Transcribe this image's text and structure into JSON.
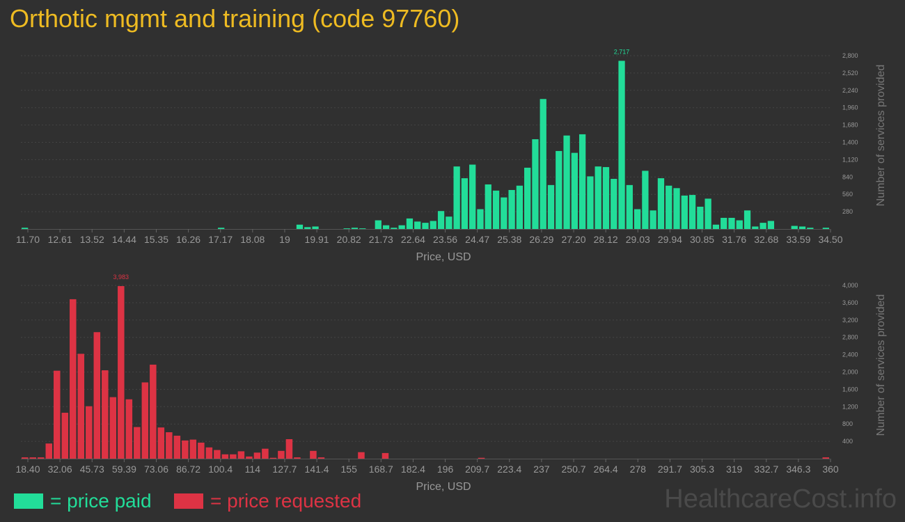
{
  "title": "Orthotic mgmt and training (code 97760)",
  "colors": {
    "background": "#303030",
    "title": "#eebb22",
    "paid": "#22dd99",
    "requested": "#dd3344",
    "axis_text": "#999999",
    "grid": "#444444"
  },
  "legend": {
    "paid_label": "= price paid",
    "requested_label": "= price requested"
  },
  "watermark": "HealthcareCost.info",
  "chart_data": [
    {
      "type": "bar",
      "series": [
        {
          "name": "price paid",
          "color": "#22dd99"
        }
      ],
      "xlabel": "Price, USD",
      "ylabel": "Number of services provided",
      "xticks": [
        "11.70",
        "12.61",
        "13.52",
        "14.44",
        "15.35",
        "16.26",
        "17.17",
        "18.08",
        "19",
        "19.91",
        "20.82",
        "21.73",
        "22.64",
        "23.56",
        "24.47",
        "25.38",
        "26.29",
        "27.20",
        "28.12",
        "29.03",
        "29.94",
        "30.85",
        "31.76",
        "32.68",
        "33.59",
        "34.50"
      ],
      "yticks": [
        "280",
        "560",
        "840",
        "1,120",
        "1,400",
        "1,680",
        "1,960",
        "2,240",
        "2,520",
        "2,800"
      ],
      "ylim": [
        0,
        2800
      ],
      "max_label": "2,717",
      "values": [
        20,
        0,
        0,
        0,
        0,
        0,
        0,
        0,
        0,
        0,
        0,
        0,
        0,
        0,
        0,
        0,
        0,
        0,
        0,
        0,
        0,
        0,
        0,
        0,
        0,
        20,
        0,
        0,
        0,
        0,
        0,
        0,
        0,
        0,
        0,
        70,
        30,
        40,
        0,
        0,
        0,
        10,
        20,
        10,
        0,
        140,
        60,
        20,
        60,
        170,
        120,
        100,
        130,
        290,
        200,
        1010,
        820,
        1040,
        320,
        720,
        620,
        510,
        630,
        700,
        990,
        1450,
        2100,
        710,
        1260,
        1510,
        1230,
        1530,
        850,
        1010,
        1000,
        810,
        2717,
        710,
        320,
        940,
        300,
        820,
        700,
        660,
        540,
        550,
        360,
        490,
        70,
        180,
        180,
        140,
        300,
        40,
        100,
        130,
        0,
        0,
        50,
        40,
        20,
        0,
        20
      ]
    },
    {
      "type": "bar",
      "series": [
        {
          "name": "price requested",
          "color": "#dd3344"
        }
      ],
      "xlabel": "Price, USD",
      "ylabel": "Number of services provided",
      "xticks": [
        "18.40",
        "32.06",
        "45.73",
        "59.39",
        "73.06",
        "86.72",
        "100.4",
        "114",
        "127.7",
        "141.4",
        "155",
        "168.7",
        "182.4",
        "196",
        "209.7",
        "223.4",
        "237",
        "250.7",
        "264.4",
        "278",
        "291.7",
        "305.3",
        "319",
        "332.7",
        "346.3",
        "360"
      ],
      "yticks": [
        "400",
        "800",
        "1,200",
        "1,600",
        "2,000",
        "2,400",
        "2,800",
        "3,200",
        "3,600",
        "4,000"
      ],
      "ylim": [
        0,
        4000
      ],
      "max_label": "3,983",
      "values": [
        30,
        30,
        30,
        350,
        2030,
        1060,
        3680,
        2420,
        1210,
        2920,
        2040,
        1420,
        3983,
        1370,
        730,
        1760,
        2170,
        720,
        610,
        530,
        420,
        440,
        370,
        260,
        200,
        100,
        100,
        170,
        50,
        140,
        230,
        20,
        180,
        450,
        30,
        0,
        180,
        30,
        0,
        0,
        0,
        0,
        150,
        0,
        0,
        130,
        0,
        0,
        0,
        0,
        0,
        0,
        0,
        0,
        0,
        0,
        0,
        20,
        0,
        0,
        0,
        0,
        0,
        0,
        0,
        0,
        0,
        0,
        0,
        0,
        0,
        0,
        0,
        0,
        0,
        0,
        0,
        0,
        0,
        0,
        0,
        0,
        0,
        0,
        0,
        0,
        0,
        0,
        0,
        0,
        0,
        0,
        0,
        0,
        0,
        0,
        0,
        0,
        0,
        0,
        30
      ]
    }
  ]
}
